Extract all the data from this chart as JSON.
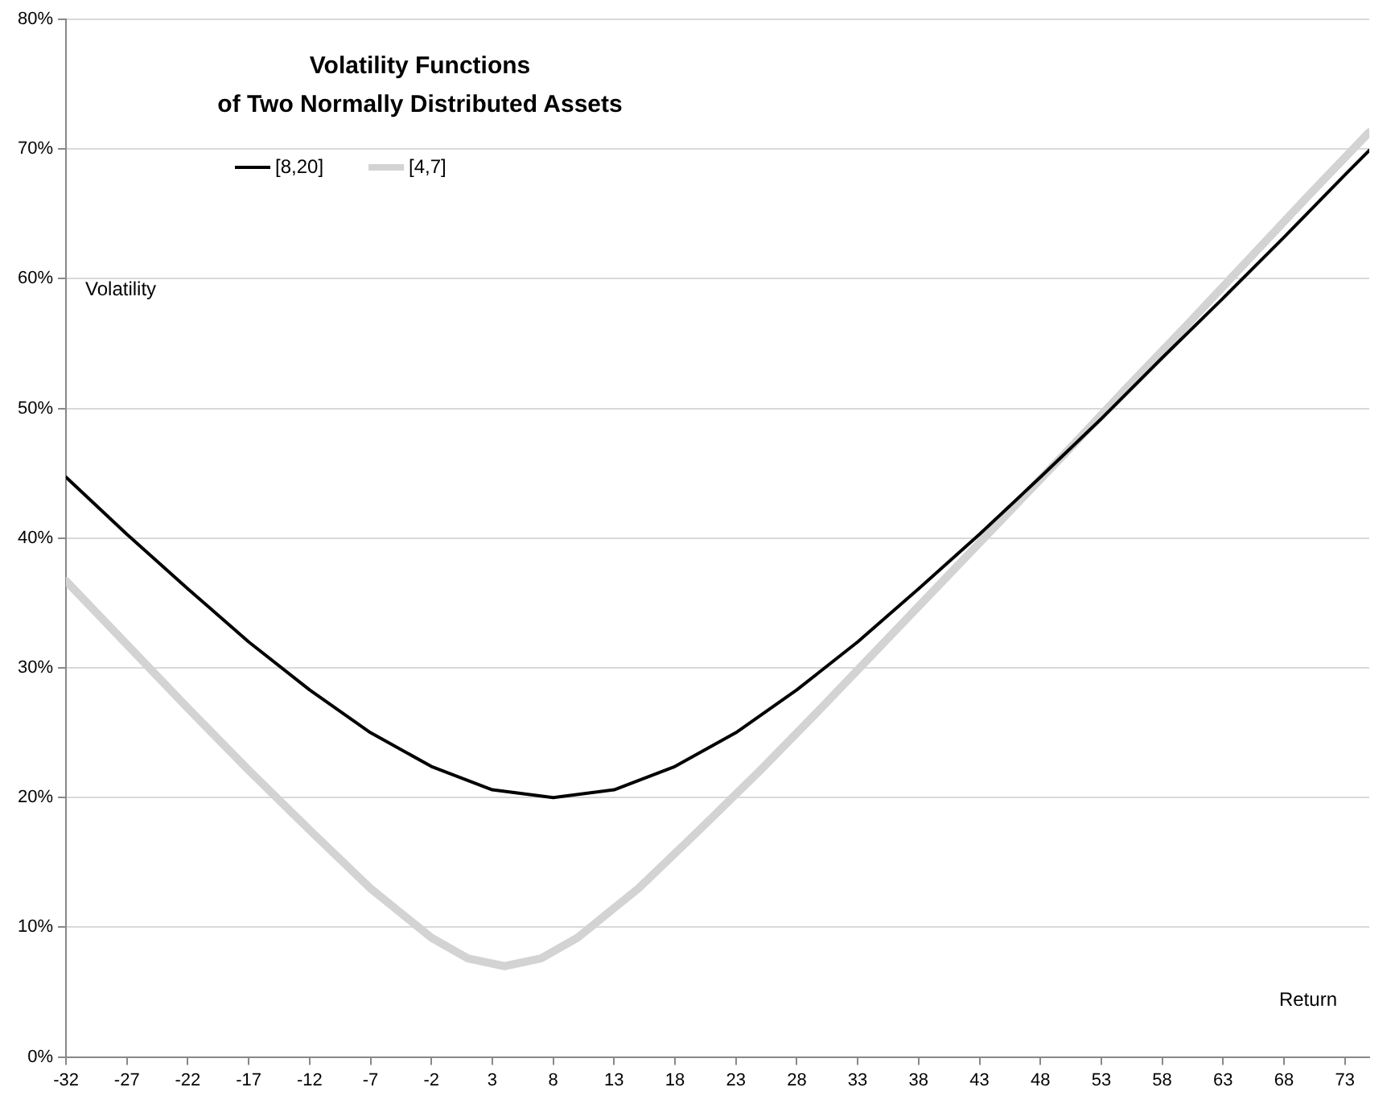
{
  "chart_data": {
    "type": "line",
    "title": "Volatility Functions\nof Two Normally Distributed Assets",
    "xlabel": "Return",
    "ylabel": "Volatility",
    "series": [
      {
        "name": "[8,20]",
        "color": "#000000",
        "x": [
          -32,
          -27,
          -22,
          -17,
          -12,
          -7,
          -2,
          3,
          8,
          13,
          18,
          23,
          28,
          33,
          38,
          43,
          48,
          53,
          58,
          63,
          68,
          73,
          75
        ],
        "values": [
          44.7,
          40.3,
          36.1,
          32,
          28.3,
          25,
          22.4,
          20.6,
          20,
          20.6,
          22.4,
          25,
          28.3,
          32,
          36.1,
          40.3,
          44.7,
          49.2,
          53.9,
          58.5,
          63.2,
          68,
          69.9
        ]
      },
      {
        "name": "[4,7]",
        "color": "#d3d3d3",
        "x": [
          -32,
          -27,
          -22,
          -17,
          -12,
          -7,
          -2,
          1,
          4,
          7,
          10,
          15,
          20,
          25,
          30,
          35,
          40,
          45,
          50,
          55,
          60,
          65,
          70,
          75
        ],
        "values": [
          36.7,
          31.8,
          26.9,
          22.1,
          17.5,
          13,
          9.2,
          7.6,
          7,
          7.6,
          9.2,
          13,
          17.5,
          22.1,
          26.9,
          31.8,
          36.7,
          41.6,
          46.5,
          51.5,
          56.4,
          61.4,
          66.4,
          71.3
        ]
      }
    ],
    "xlim": [
      -32,
      75
    ],
    "xticks": [
      -32,
      -27,
      -22,
      -17,
      -12,
      -7,
      -2,
      3,
      8,
      13,
      18,
      23,
      28,
      33,
      38,
      43,
      48,
      53,
      58,
      63,
      68,
      73
    ],
    "ylim": [
      0,
      80
    ],
    "yticks": [
      {
        "value": 0,
        "label": "0%"
      },
      {
        "value": 10,
        "label": "10%"
      },
      {
        "value": 20,
        "label": "20%"
      },
      {
        "value": 30,
        "label": "30%"
      },
      {
        "value": 40,
        "label": "40%"
      },
      {
        "value": 50,
        "label": "50%"
      },
      {
        "value": 60,
        "label": "60%"
      },
      {
        "value": 70,
        "label": "70%"
      },
      {
        "value": 80,
        "label": "80%"
      }
    ],
    "grid": "y",
    "legend": "top left",
    "marker": "none",
    "line_style": "solid"
  }
}
